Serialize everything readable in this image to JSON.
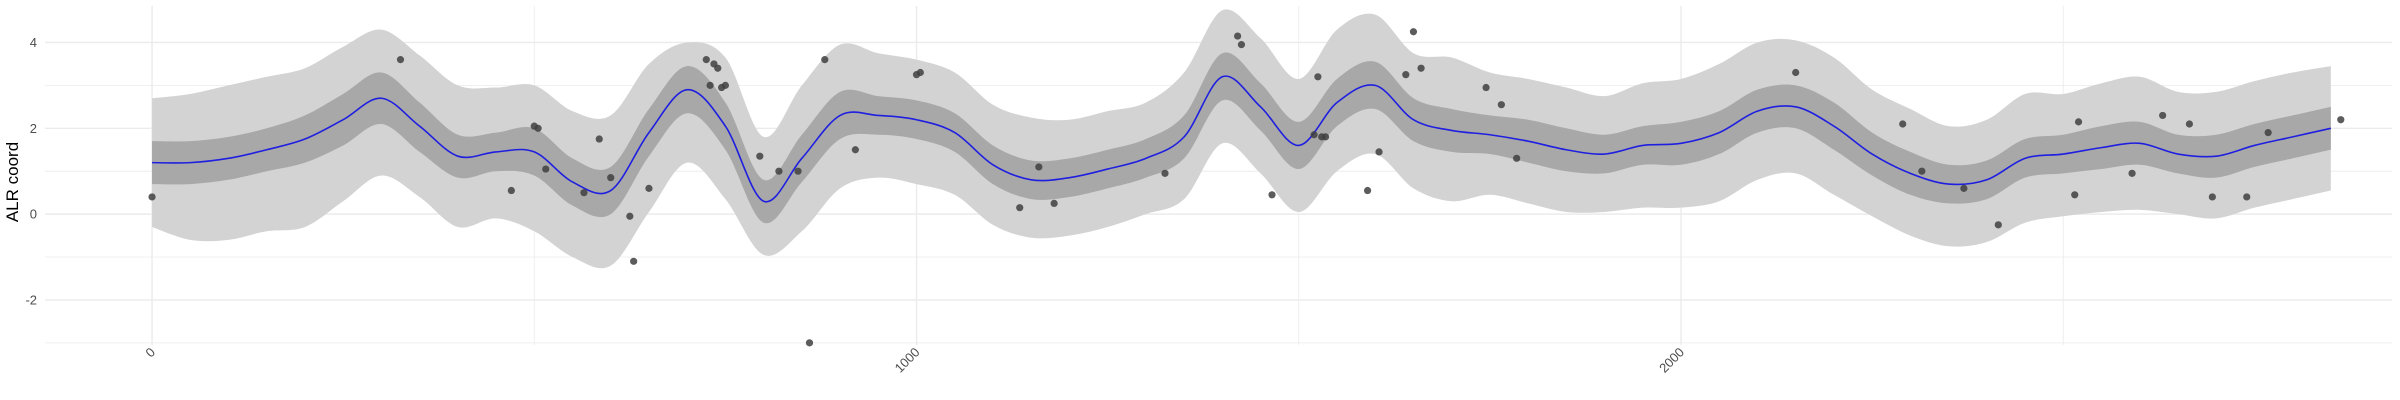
{
  "chart_data": {
    "type": "line",
    "title": "",
    "xlabel": "",
    "ylabel": "ALR coord",
    "xlim": [
      -140,
      2930
    ],
    "ylim": [
      -3.05,
      4.85
    ],
    "x_ticks": [
      0,
      1000,
      2000
    ],
    "x_minor_ticks": [
      500,
      1500,
      2500
    ],
    "y_ticks": [
      -2,
      0,
      2,
      4
    ],
    "y_minor_ticks": [
      -3,
      -1,
      1,
      3
    ],
    "grid": true,
    "legend": "none",
    "colors": {
      "line": "#1f1fe0",
      "inner_band": "#a8a8a8",
      "outer_band": "#d3d3d3",
      "points": "#404040",
      "grid": "#ebebeb"
    },
    "series": [
      {
        "kind": "fit",
        "x": [
          0,
          50,
          100,
          150,
          200,
          250,
          300,
          350,
          400,
          450,
          500,
          550,
          600,
          650,
          700,
          750,
          800,
          850,
          900,
          950,
          1000,
          1050,
          1100,
          1150,
          1200,
          1250,
          1300,
          1350,
          1400,
          1450,
          1500,
          1550,
          1600,
          1650,
          1700,
          1750,
          1800,
          1850,
          1900,
          1950,
          2000,
          2050,
          2100,
          2150,
          2200,
          2250,
          2300,
          2350,
          2400,
          2450,
          2500,
          2550,
          2600,
          2650,
          2700,
          2750,
          2800,
          2850
        ],
        "y": [
          1.2,
          1.2,
          1.3,
          1.5,
          1.75,
          2.2,
          2.7,
          2.05,
          1.35,
          1.45,
          1.45,
          0.75,
          0.55,
          1.9,
          2.9,
          2.05,
          0.3,
          1.3,
          2.3,
          2.3,
          2.2,
          1.9,
          1.15,
          0.8,
          0.85,
          1.05,
          1.3,
          1.8,
          3.2,
          2.5,
          1.6,
          2.6,
          3.0,
          2.2,
          1.95,
          1.85,
          1.7,
          1.5,
          1.4,
          1.6,
          1.65,
          1.9,
          2.4,
          2.5,
          2.05,
          1.4,
          0.95,
          0.7,
          0.8,
          1.3,
          1.4,
          1.55,
          1.65,
          1.4,
          1.35,
          1.6,
          1.8,
          2.0
        ]
      },
      {
        "kind": "inner_band",
        "lower": [
          0.7,
          0.7,
          0.8,
          1.0,
          1.2,
          1.6,
          2.1,
          1.45,
          0.85,
          1.0,
          0.9,
          0.2,
          0.0,
          1.35,
          2.35,
          1.5,
          -0.2,
          0.75,
          1.75,
          1.85,
          1.75,
          1.45,
          0.7,
          0.35,
          0.4,
          0.6,
          0.85,
          1.3,
          2.65,
          1.95,
          1.05,
          2.05,
          2.45,
          1.7,
          1.45,
          1.4,
          1.2,
          1.0,
          0.95,
          1.15,
          1.15,
          1.4,
          1.9,
          2.0,
          1.5,
          0.9,
          0.45,
          0.25,
          0.35,
          0.85,
          0.95,
          1.05,
          1.15,
          0.95,
          0.85,
          1.1,
          1.3,
          1.5
        ],
        "upper": [
          1.7,
          1.7,
          1.8,
          2.0,
          2.3,
          2.8,
          3.3,
          2.6,
          1.85,
          1.9,
          2.0,
          1.3,
          1.1,
          2.45,
          3.45,
          2.6,
          0.8,
          1.85,
          2.85,
          2.75,
          2.65,
          2.35,
          1.6,
          1.25,
          1.3,
          1.5,
          1.75,
          2.3,
          3.75,
          3.05,
          2.15,
          3.15,
          3.55,
          2.7,
          2.45,
          2.3,
          2.2,
          2.0,
          1.85,
          2.05,
          2.15,
          2.4,
          2.9,
          3.0,
          2.6,
          1.9,
          1.45,
          1.15,
          1.25,
          1.75,
          1.85,
          2.05,
          2.15,
          1.85,
          1.85,
          2.1,
          2.3,
          2.5
        ]
      },
      {
        "kind": "outer_band",
        "lower": [
          -0.3,
          -0.6,
          -0.6,
          -0.4,
          -0.3,
          0.3,
          0.9,
          0.4,
          -0.3,
          -0.1,
          -0.4,
          -1.0,
          -1.2,
          0.05,
          1.2,
          0.35,
          -0.95,
          -0.4,
          0.6,
          0.85,
          0.7,
          0.45,
          -0.25,
          -0.55,
          -0.5,
          -0.3,
          0.0,
          0.35,
          1.65,
          0.95,
          0.05,
          1.0,
          1.4,
          0.6,
          0.3,
          0.45,
          0.25,
          0.05,
          0.05,
          0.15,
          0.15,
          0.3,
          0.8,
          0.95,
          0.45,
          -0.05,
          -0.5,
          -0.75,
          -0.65,
          -0.2,
          -0.05,
          0.05,
          0.1,
          0.0,
          -0.1,
          0.15,
          0.35,
          0.55
        ],
        "upper": [
          2.7,
          2.8,
          3.0,
          3.2,
          3.4,
          3.9,
          4.3,
          3.7,
          3.0,
          2.95,
          3.0,
          2.4,
          2.3,
          3.5,
          4.0,
          3.65,
          1.8,
          3.0,
          3.95,
          3.75,
          3.6,
          3.3,
          2.55,
          2.25,
          2.2,
          2.4,
          2.6,
          3.3,
          4.75,
          4.1,
          3.15,
          4.3,
          4.65,
          3.75,
          3.65,
          3.3,
          3.15,
          2.95,
          2.75,
          3.05,
          3.15,
          3.5,
          4.0,
          4.05,
          3.65,
          2.9,
          2.45,
          2.05,
          2.2,
          2.8,
          2.8,
          3.05,
          3.2,
          2.85,
          2.85,
          3.1,
          3.3,
          3.45
        ]
      },
      {
        "kind": "points",
        "x": [
          0,
          325,
          470,
          500,
          505,
          515,
          565,
          585,
          600,
          625,
          630,
          650,
          725,
          730,
          735,
          740,
          745,
          750,
          795,
          820,
          845,
          860,
          880,
          920,
          1000,
          1005,
          1135,
          1160,
          1180,
          1325,
          1420,
          1425,
          1465,
          1520,
          1525,
          1530,
          1535,
          1590,
          1605,
          1640,
          1650,
          1660,
          1745,
          1765,
          1785,
          2150,
          2290,
          2315,
          2370,
          2415,
          2515,
          2520,
          2590,
          2630,
          2665,
          2695,
          2740,
          2768,
          2863
        ],
        "y": [
          0.4,
          3.6,
          0.55,
          2.05,
          2.0,
          1.05,
          0.5,
          1.75,
          0.85,
          -0.05,
          -1.1,
          0.6,
          3.6,
          3.0,
          3.5,
          3.4,
          2.95,
          3.0,
          1.35,
          1.0,
          1.0,
          -3.0,
          3.6,
          1.5,
          3.25,
          3.3,
          0.15,
          1.1,
          0.25,
          0.95,
          4.15,
          3.95,
          0.45,
          1.85,
          3.2,
          1.8,
          1.8,
          0.55,
          1.45,
          3.25,
          4.25,
          3.4,
          2.95,
          2.55,
          1.3,
          3.3,
          2.1,
          1.0,
          0.6,
          -0.25,
          0.45,
          2.15,
          0.95,
          2.3,
          2.1,
          0.4,
          0.4,
          1.9,
          2.2
        ]
      }
    ]
  }
}
